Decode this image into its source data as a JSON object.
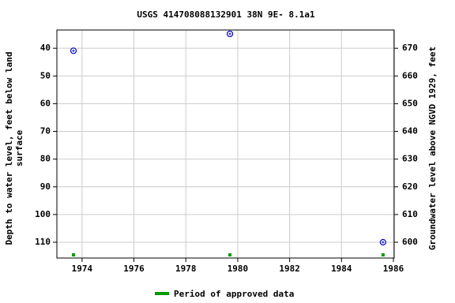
{
  "chart_data": {
    "type": "scatter",
    "title": "USGS 414708088132901 38N 9E- 8.1a1",
    "ylabel": [
      "Depth to water level, feet below land",
      "surface"
    ],
    "y2label": "Groundwater level above NGVD 1929, feet",
    "xlim": [
      1973.03,
      1986.03
    ],
    "xticks": [
      1974,
      1976,
      1978,
      1980,
      1982,
      1984,
      1986
    ],
    "ylim": [
      115.7,
      33.4
    ],
    "yticks": [
      40,
      50,
      60,
      70,
      80,
      90,
      100,
      110
    ],
    "y2lim": [
      594.3,
      676.6
    ],
    "y2ticks": [
      600,
      610,
      620,
      630,
      640,
      650,
      660,
      670
    ],
    "grid": true,
    "series": [
      {
        "color": "#0000cc",
        "x": [
          1973.67,
          1979.7,
          1985.6
        ],
        "values": [
          40.9,
          34.8,
          110
        ]
      }
    ],
    "approved": {
      "name": "Period of approved data",
      "color": "#009900",
      "x": [
        1973.67,
        1979.7,
        1985.6
      ]
    }
  }
}
